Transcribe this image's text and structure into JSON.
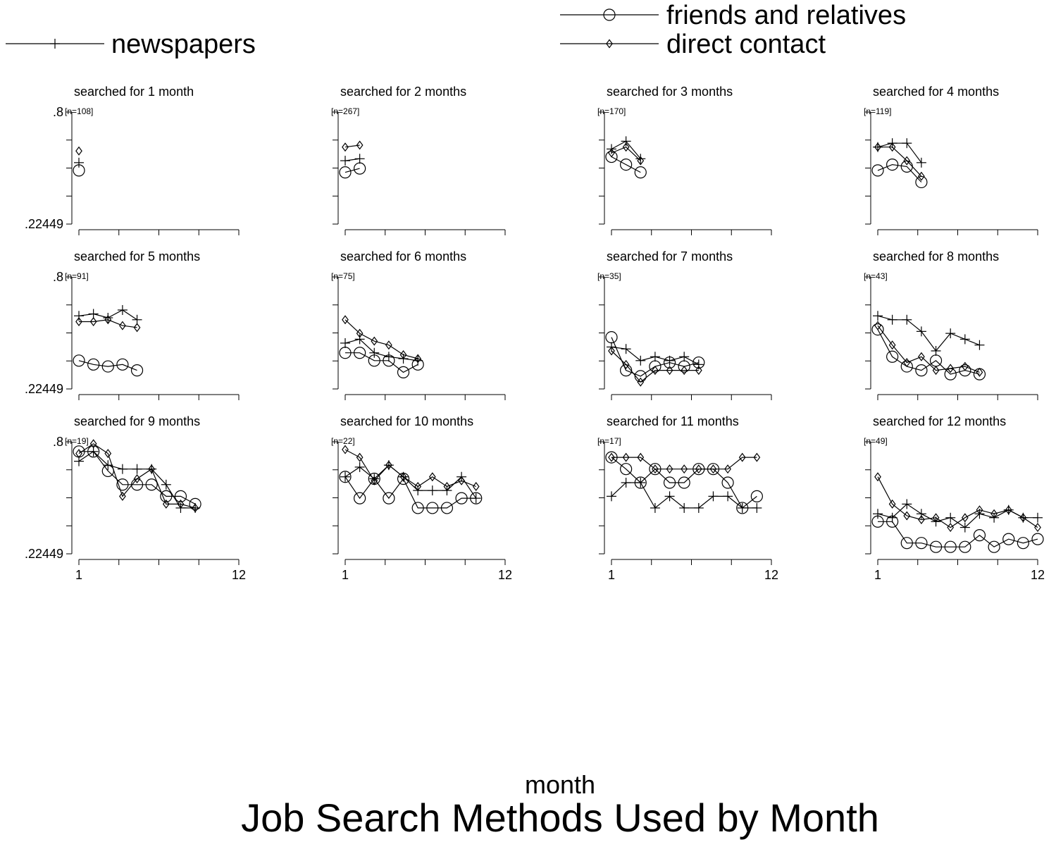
{
  "chart_data": {
    "type": "line",
    "title": "Job Search Methods Used by Month",
    "xlabel": "month",
    "ylabel": "",
    "ylim": [
      0.22449,
      0.8
    ],
    "y_tick_labels": [
      ".22449",
      ".8"
    ],
    "xlim": [
      1,
      12
    ],
    "x_tick_labels": [
      "1",
      "12"
    ],
    "legend": {
      "placement": "top",
      "entries": [
        {
          "label": "newspapers",
          "marker": "plus"
        },
        {
          "label": "friends and relatives",
          "marker": "circle"
        },
        {
          "label": "direct contact",
          "marker": "diamond"
        }
      ]
    },
    "series_names": [
      "newspapers",
      "friends and relatives",
      "direct contact"
    ],
    "panels": [
      {
        "title": "searched for 1 month",
        "n": "[n=108]",
        "series": [
          {
            "name": "newspapers",
            "x": [
              1
            ],
            "y": [
              0.54
            ]
          },
          {
            "name": "friends and relatives",
            "x": [
              1
            ],
            "y": [
              0.5
            ]
          },
          {
            "name": "direct contact",
            "x": [
              1
            ],
            "y": [
              0.6
            ]
          }
        ]
      },
      {
        "title": "searched for 2 months",
        "n": "[n=267]",
        "series": [
          {
            "name": "newspapers",
            "x": [
              1,
              2
            ],
            "y": [
              0.55,
              0.56
            ]
          },
          {
            "name": "friends and relatives",
            "x": [
              1,
              2
            ],
            "y": [
              0.49,
              0.51
            ]
          },
          {
            "name": "direct contact",
            "x": [
              1,
              2
            ],
            "y": [
              0.62,
              0.63
            ]
          }
        ]
      },
      {
        "title": "searched for 3 months",
        "n": "[n=170]",
        "series": [
          {
            "name": "newspapers",
            "x": [
              1,
              2,
              3
            ],
            "y": [
              0.61,
              0.65,
              0.56
            ]
          },
          {
            "name": "friends and relatives",
            "x": [
              1,
              2,
              3
            ],
            "y": [
              0.57,
              0.53,
              0.49
            ]
          },
          {
            "name": "direct contact",
            "x": [
              1,
              2,
              3
            ],
            "y": [
              0.59,
              0.62,
              0.55
            ]
          }
        ]
      },
      {
        "title": "searched for 4 months",
        "n": "[n=119]",
        "series": [
          {
            "name": "newspapers",
            "x": [
              1,
              2,
              3,
              4
            ],
            "y": [
              0.62,
              0.64,
              0.64,
              0.54
            ]
          },
          {
            "name": "friends and relatives",
            "x": [
              1,
              2,
              3,
              4
            ],
            "y": [
              0.5,
              0.53,
              0.52,
              0.44
            ]
          },
          {
            "name": "direct contact",
            "x": [
              1,
              2,
              3,
              4
            ],
            "y": [
              0.62,
              0.62,
              0.55,
              0.47
            ]
          }
        ]
      },
      {
        "title": "searched for 5 months",
        "n": "[n=91]",
        "series": [
          {
            "name": "newspapers",
            "x": [
              1,
              2,
              3,
              4,
              5
            ],
            "y": [
              0.6,
              0.61,
              0.59,
              0.63,
              0.58
            ]
          },
          {
            "name": "friends and relatives",
            "x": [
              1,
              2,
              3,
              4,
              5
            ],
            "y": [
              0.37,
              0.35,
              0.34,
              0.35,
              0.32
            ]
          },
          {
            "name": "direct contact",
            "x": [
              1,
              2,
              3,
              4,
              5
            ],
            "y": [
              0.57,
              0.57,
              0.58,
              0.55,
              0.54
            ]
          }
        ]
      },
      {
        "title": "searched for 6 months",
        "n": "[n=75]",
        "series": [
          {
            "name": "newspapers",
            "x": [
              1,
              2,
              3,
              4,
              5,
              6
            ],
            "y": [
              0.46,
              0.48,
              0.41,
              0.39,
              0.38,
              0.37
            ]
          },
          {
            "name": "friends and relatives",
            "x": [
              1,
              2,
              3,
              4,
              5,
              6
            ],
            "y": [
              0.41,
              0.41,
              0.37,
              0.37,
              0.31,
              0.35
            ]
          },
          {
            "name": "direct contact",
            "x": [
              1,
              2,
              3,
              4,
              5,
              6
            ],
            "y": [
              0.58,
              0.51,
              0.47,
              0.45,
              0.4,
              0.38
            ]
          }
        ]
      },
      {
        "title": "searched for 7 months",
        "n": "[n=35]",
        "series": [
          {
            "name": "newspapers",
            "x": [
              1,
              2,
              3,
              4,
              5,
              6,
              7
            ],
            "y": [
              0.44,
              0.43,
              0.37,
              0.39,
              0.37,
              0.39,
              0.35
            ]
          },
          {
            "name": "friends and relatives",
            "x": [
              1,
              2,
              3,
              4,
              5,
              6,
              7
            ],
            "y": [
              0.49,
              0.32,
              0.29,
              0.34,
              0.36,
              0.34,
              0.36
            ]
          },
          {
            "name": "direct contact",
            "x": [
              1,
              2,
              3,
              4,
              5,
              6,
              7
            ],
            "y": [
              0.42,
              0.35,
              0.26,
              0.32,
              0.32,
              0.32,
              0.32
            ]
          }
        ]
      },
      {
        "title": "searched for 8 months",
        "n": "[n=43]",
        "series": [
          {
            "name": "newspapers",
            "x": [
              1,
              2,
              3,
              4,
              5,
              6,
              7,
              8
            ],
            "y": [
              0.6,
              0.58,
              0.58,
              0.52,
              0.42,
              0.51,
              0.48,
              0.45
            ]
          },
          {
            "name": "friends and relatives",
            "x": [
              1,
              2,
              3,
              4,
              5,
              6,
              7,
              8
            ],
            "y": [
              0.53,
              0.39,
              0.34,
              0.32,
              0.37,
              0.3,
              0.32,
              0.3
            ]
          },
          {
            "name": "direct contact",
            "x": [
              1,
              2,
              3,
              4,
              5,
              6,
              7,
              8
            ],
            "y": [
              0.55,
              0.45,
              0.36,
              0.39,
              0.32,
              0.33,
              0.34,
              0.31
            ]
          }
        ]
      },
      {
        "title": "searched for 9 months",
        "n": "[n=19]",
        "series": [
          {
            "name": "newspapers",
            "x": [
              1,
              2,
              3,
              4,
              5,
              6,
              7,
              8,
              9
            ],
            "y": [
              0.7,
              0.75,
              0.68,
              0.66,
              0.66,
              0.66,
              0.58,
              0.46,
              0.46
            ]
          },
          {
            "name": "friends and relatives",
            "x": [
              1,
              2,
              3,
              4,
              5,
              6,
              7,
              8,
              9
            ],
            "y": [
              0.75,
              0.75,
              0.65,
              0.58,
              0.58,
              0.58,
              0.52,
              0.52,
              0.48
            ]
          },
          {
            "name": "direct contact",
            "x": [
              1,
              2,
              3,
              4,
              5,
              6,
              7,
              8,
              9
            ],
            "y": [
              0.74,
              0.79,
              0.74,
              0.52,
              0.61,
              0.66,
              0.48,
              0.48,
              0.46
            ]
          }
        ]
      },
      {
        "title": "searched for 10 months",
        "n": "[n=22]",
        "series": [
          {
            "name": "newspapers",
            "x": [
              1,
              2,
              3,
              4,
              5,
              6,
              7,
              8,
              9,
              10
            ],
            "y": [
              0.62,
              0.67,
              0.61,
              0.68,
              0.62,
              0.55,
              0.55,
              0.55,
              0.62,
              0.51
            ]
          },
          {
            "name": "friends and relatives",
            "x": [
              1,
              2,
              3,
              4,
              5,
              6,
              7,
              8,
              9,
              10
            ],
            "y": [
              0.62,
              0.51,
              0.61,
              0.51,
              0.61,
              0.46,
              0.46,
              0.46,
              0.51,
              0.51
            ]
          },
          {
            "name": "direct contact",
            "x": [
              1,
              2,
              3,
              4,
              5,
              6,
              7,
              8,
              9,
              10
            ],
            "y": [
              0.76,
              0.72,
              0.6,
              0.68,
              0.62,
              0.57,
              0.62,
              0.57,
              0.6,
              0.57
            ]
          }
        ]
      },
      {
        "title": "searched for 11 months",
        "n": "[n=17]",
        "series": [
          {
            "name": "newspapers",
            "x": [
              1,
              2,
              3,
              4,
              5,
              6,
              7,
              8,
              9,
              10,
              11
            ],
            "y": [
              0.52,
              0.59,
              0.59,
              0.46,
              0.52,
              0.46,
              0.46,
              0.52,
              0.52,
              0.46,
              0.46
            ]
          },
          {
            "name": "friends and relatives",
            "x": [
              1,
              2,
              3,
              4,
              5,
              6,
              7,
              8,
              9,
              10,
              11
            ],
            "y": [
              0.72,
              0.66,
              0.59,
              0.66,
              0.59,
              0.59,
              0.66,
              0.66,
              0.59,
              0.46,
              0.52
            ]
          },
          {
            "name": "direct contact",
            "x": [
              1,
              2,
              3,
              4,
              5,
              6,
              7,
              8,
              9,
              10,
              11
            ],
            "y": [
              0.72,
              0.72,
              0.72,
              0.66,
              0.66,
              0.66,
              0.66,
              0.66,
              0.66,
              0.72,
              0.72
            ]
          }
        ]
      },
      {
        "title": "searched for 12 months",
        "n": "[n=49]",
        "series": [
          {
            "name": "newspapers",
            "x": [
              1,
              2,
              3,
              4,
              5,
              6,
              7,
              8,
              9,
              10,
              11,
              12
            ],
            "y": [
              0.43,
              0.41,
              0.48,
              0.43,
              0.39,
              0.41,
              0.36,
              0.43,
              0.41,
              0.45,
              0.41,
              0.41
            ]
          },
          {
            "name": "friends and relatives",
            "x": [
              1,
              2,
              3,
              4,
              5,
              6,
              7,
              8,
              9,
              10,
              11,
              12
            ],
            "y": [
              0.39,
              0.39,
              0.28,
              0.28,
              0.26,
              0.26,
              0.26,
              0.32,
              0.26,
              0.3,
              0.28,
              0.3
            ]
          },
          {
            "name": "direct contact",
            "x": [
              1,
              2,
              3,
              4,
              5,
              6,
              7,
              8,
              9,
              10,
              11,
              12
            ],
            "y": [
              0.62,
              0.48,
              0.42,
              0.4,
              0.41,
              0.36,
              0.41,
              0.45,
              0.43,
              0.45,
              0.41,
              0.36
            ]
          }
        ]
      }
    ]
  }
}
